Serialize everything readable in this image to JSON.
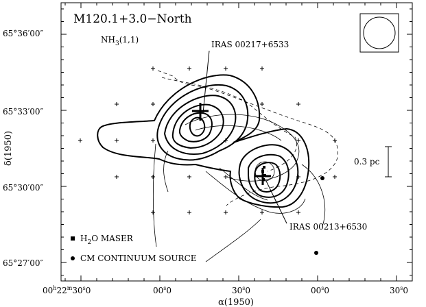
{
  "chart_data": {
    "type": "contour",
    "title": "M120.1+3.0−North",
    "subtitle_main": "NH",
    "subtitle_sub": "3",
    "subtitle_tail": "(1,1)",
    "xlabel": "α(1950)",
    "ylabel": "δ(1950)",
    "x_ticks": [
      {
        "h": 0,
        "m": 22,
        "s": 30,
        "label_h": "00",
        "label_m": "22",
        "label_s": "30",
        "label_unit": "h",
        "minute_unit": "m",
        "frac": "0"
      },
      {
        "h": 0,
        "m": 23,
        "s": 0,
        "label_main": "00",
        "frac": "0"
      },
      {
        "h": 0,
        "m": 23,
        "s": 30,
        "label_main": "30",
        "frac": "0"
      },
      {
        "h": 0,
        "m": 24,
        "s": 0,
        "label_main": "00",
        "frac": "0"
      },
      {
        "h": 0,
        "m": 24,
        "s": 30,
        "label_main": "30",
        "frac": "0"
      }
    ],
    "y_ticks": [
      {
        "label": "65°36′00″"
      },
      {
        "label": "65°33′00″"
      },
      {
        "label": "65°30′00″"
      },
      {
        "label": "65°27′00″"
      }
    ],
    "sources": [
      {
        "name": "IRAS 00217+6533"
      },
      {
        "name": "IRAS 00213+6530"
      }
    ],
    "scale_bar": {
      "label": "0.3 pc"
    },
    "legend": [
      {
        "marker": "square",
        "label_main": "H",
        "label_sub": "2",
        "label_tail": "O MASER"
      },
      {
        "marker": "circle",
        "label": "CM CONTINUUM SOURCE"
      }
    ],
    "beam": "circle",
    "grid": false
  }
}
